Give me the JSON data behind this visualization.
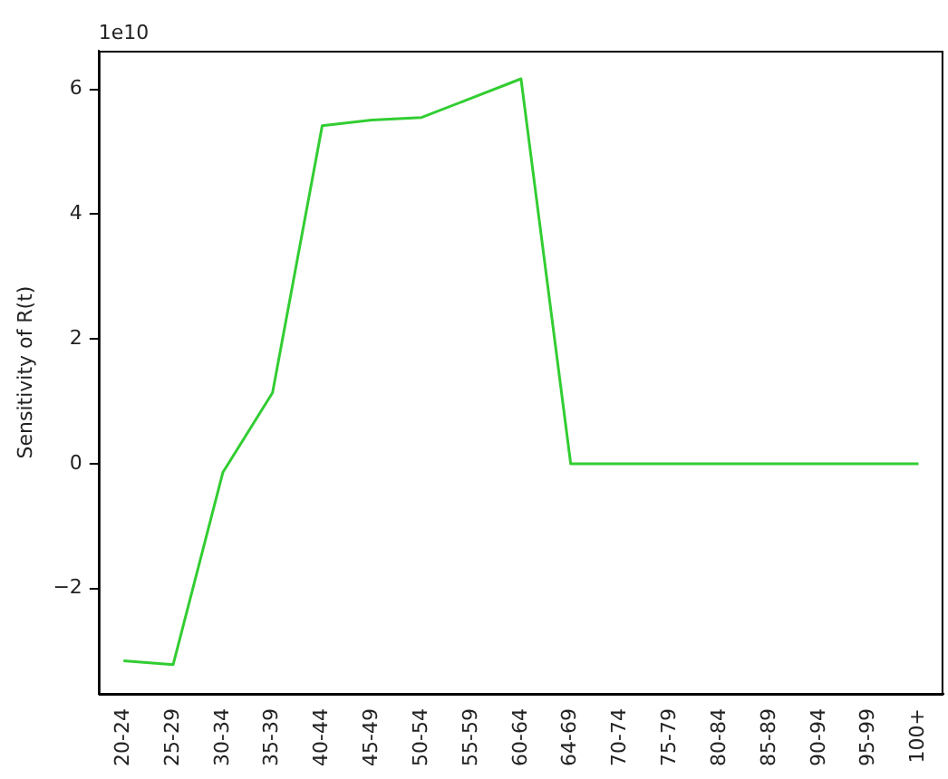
{
  "chart_data": {
    "type": "line",
    "ylabel": "Sensitivity of R(t)",
    "annotations": [
      "1e10"
    ],
    "categories": [
      "20-24",
      "25-29",
      "30-34",
      "35-39",
      "40-44",
      "45-49",
      "50-54",
      "55-59",
      "60-64",
      "64-69",
      "70-74",
      "75-79",
      "80-84",
      "85-89",
      "90-94",
      "95-99",
      "100+"
    ],
    "series": [
      {
        "color": "#32cd32",
        "values": [
          -3.16,
          -3.22,
          -0.14,
          1.14,
          5.42,
          5.51,
          5.55,
          5.86,
          6.17,
          0,
          0,
          0,
          0,
          0,
          0,
          0,
          0
        ]
      }
    ],
    "ylim": [
      -3.69,
      6.62
    ],
    "yticks": [
      -2,
      0,
      2,
      4,
      6
    ],
    "grid": false,
    "legend": false,
    "marker": "none",
    "line_style": "solid"
  }
}
